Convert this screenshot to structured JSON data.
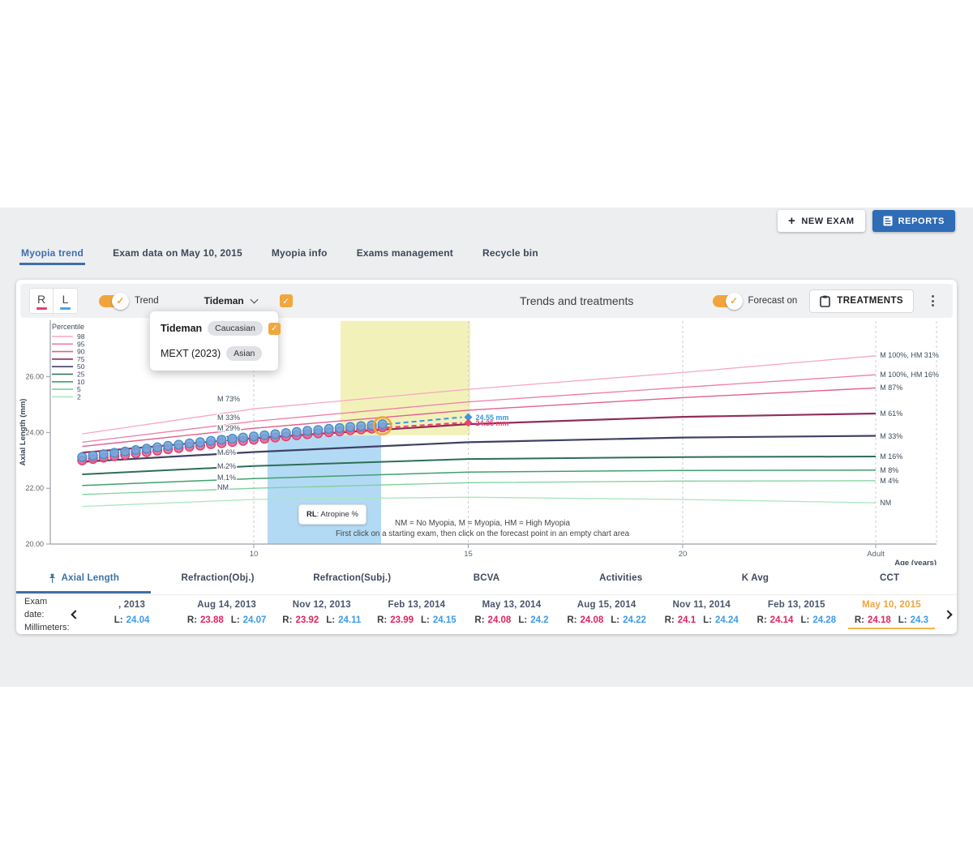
{
  "icons": {
    "check": "✓"
  },
  "header": {
    "actions": {
      "new_exam": "NEW EXAM",
      "reports": "REPORTS"
    },
    "tabs": [
      {
        "label": "Myopia trend",
        "active": true
      },
      {
        "label": "Exam data on May 10, 2015"
      },
      {
        "label": "Myopia info"
      },
      {
        "label": "Exams management"
      },
      {
        "label": "Recycle bin"
      }
    ]
  },
  "toolbar": {
    "eye_r": "R",
    "eye_l": "L",
    "trend_label": "Trend",
    "model_selector_label": "Tideman",
    "title": "Trends and treatments",
    "forecast_label": "Forecast on",
    "treatments_label": "TREATMENTS"
  },
  "model_dropdown": [
    {
      "name": "Tideman",
      "tag": "Caucasian",
      "checked": true,
      "bold": true
    },
    {
      "name": "MEXT (2023)",
      "tag": "Asian",
      "checked": false,
      "bold": false
    }
  ],
  "chart_data": {
    "type": "line",
    "ylabel": "Axial Length (mm)",
    "xlabel": "Age (years)",
    "xlim": [
      5.3,
      25.9
    ],
    "ylim": [
      20,
      28
    ],
    "x_ticks": [
      {
        "age": 10,
        "label": "10"
      },
      {
        "age": 15,
        "label": "15"
      },
      {
        "age": 20,
        "label": "20"
      },
      {
        "age": 24.5,
        "label": "Adult"
      }
    ],
    "y_ticks": [
      {
        "mm": 26,
        "label": "26.00"
      },
      {
        "mm": 24,
        "label": "24.00"
      },
      {
        "mm": 22,
        "label": "22.00"
      },
      {
        "mm": 20,
        "label": "20.00"
      }
    ],
    "legend": {
      "title": "Percentile",
      "entries": [
        {
          "label": "98",
          "color": "#f7a8c1"
        },
        {
          "label": "95",
          "color": "#ef7ca6"
        },
        {
          "label": "90",
          "color": "#e25f8d"
        },
        {
          "label": "75",
          "color": "#8f2d5c"
        },
        {
          "label": "50",
          "color": "#3f4164"
        },
        {
          "label": "25",
          "color": "#2d6e55"
        },
        {
          "label": "10",
          "color": "#3fa06c"
        },
        {
          "label": "5",
          "color": "#7bd29a"
        },
        {
          "label": "2",
          "color": "#abe7bd"
        }
      ]
    },
    "percentile_curves": [
      {
        "p": 98,
        "color": "#f7a8c1",
        "width": 1.3,
        "points": [
          [
            6,
            23.95
          ],
          [
            10,
            24.85
          ],
          [
            15,
            25.55
          ],
          [
            20,
            26.15
          ],
          [
            24.5,
            26.75
          ]
        ]
      },
      {
        "p": 95,
        "color": "#ef7ca6",
        "width": 1.3,
        "points": [
          [
            6,
            23.65
          ],
          [
            10,
            24.4
          ],
          [
            15,
            25.1
          ],
          [
            20,
            25.62
          ],
          [
            24.5,
            26.07
          ]
        ]
      },
      {
        "p": 90,
        "color": "#e25f8d",
        "width": 1.4,
        "points": [
          [
            6,
            23.5
          ],
          [
            10,
            24.15
          ],
          [
            15,
            24.8
          ],
          [
            20,
            25.25
          ],
          [
            24.5,
            25.6
          ]
        ]
      },
      {
        "p": 75,
        "color": "#8f2d5c",
        "width": 2.2,
        "points": [
          [
            6,
            23.28
          ],
          [
            10,
            23.8
          ],
          [
            15,
            24.3
          ],
          [
            20,
            24.56
          ],
          [
            24.5,
            24.68
          ]
        ]
      },
      {
        "p": 50,
        "color": "#3f4164",
        "width": 2.2,
        "points": [
          [
            6,
            22.95
          ],
          [
            10,
            23.3
          ],
          [
            15,
            23.65
          ],
          [
            20,
            23.82
          ],
          [
            24.5,
            23.88
          ]
        ]
      },
      {
        "p": 25,
        "color": "#2d6e55",
        "width": 2.0,
        "points": [
          [
            6,
            22.5
          ],
          [
            10,
            22.8
          ],
          [
            15,
            23.05
          ],
          [
            20,
            23.12
          ],
          [
            24.5,
            23.14
          ]
        ]
      },
      {
        "p": 10,
        "color": "#3fa06c",
        "width": 1.5,
        "points": [
          [
            6,
            22.1
          ],
          [
            10,
            22.35
          ],
          [
            15,
            22.58
          ],
          [
            20,
            22.64
          ],
          [
            24.5,
            22.65
          ]
        ]
      },
      {
        "p": 5,
        "color": "#7bd29a",
        "width": 1.3,
        "points": [
          [
            6,
            21.78
          ],
          [
            10,
            22.0
          ],
          [
            15,
            22.2
          ],
          [
            20,
            22.26
          ],
          [
            24.5,
            22.27
          ]
        ]
      },
      {
        "p": 2,
        "color": "#abe7bd",
        "width": 1.3,
        "points": [
          [
            6,
            21.35
          ],
          [
            10,
            21.6
          ],
          [
            15,
            21.68
          ],
          [
            20,
            21.6
          ],
          [
            24.5,
            21.48
          ]
        ]
      }
    ],
    "curve_labels_left_age": 9.15,
    "curve_labels_left": [
      {
        "text": "M 73%",
        "mm": 25.2
      },
      {
        "text": "M 33%",
        "mm": 24.53
      },
      {
        "text": "M 29%",
        "mm": 24.16
      },
      {
        "text": "M 12%",
        "mm": 23.78
      },
      {
        "text": "M 6%",
        "mm": 23.28
      },
      {
        "text": "M 2%",
        "mm": 22.79
      },
      {
        "text": "M 1%",
        "mm": 22.38
      },
      {
        "text": "NM",
        "mm": 22.03
      }
    ],
    "curve_labels_right_age": 24.6,
    "curve_labels_right": [
      {
        "text": "M 100%, HM 31%",
        "mm": 26.77
      },
      {
        "text": "M 100%, HM 16%",
        "mm": 26.08
      },
      {
        "text": "M 87%",
        "mm": 25.61
      },
      {
        "text": "M 61%",
        "mm": 24.68
      },
      {
        "text": "M 33%",
        "mm": 23.87
      },
      {
        "text": "M 16%",
        "mm": 23.14
      },
      {
        "text": "M 8%",
        "mm": 22.65
      },
      {
        "text": "M 4%",
        "mm": 22.27
      },
      {
        "text": "NM",
        "mm": 21.48
      }
    ],
    "series": [
      {
        "name": "R",
        "fill": "#ee6292",
        "stroke": "#db3f72",
        "points": [
          [
            6,
            23.0
          ],
          [
            6.25,
            23.05
          ],
          [
            6.5,
            23.1
          ],
          [
            6.75,
            23.15
          ],
          [
            7,
            23.2
          ],
          [
            7.25,
            23.25
          ],
          [
            7.5,
            23.3
          ],
          [
            7.75,
            23.35
          ],
          [
            8,
            23.4
          ],
          [
            8.25,
            23.44
          ],
          [
            8.5,
            23.49
          ],
          [
            8.75,
            23.53
          ],
          [
            9,
            23.58
          ],
          [
            9.25,
            23.62
          ],
          [
            9.5,
            23.66
          ],
          [
            9.75,
            23.7
          ],
          [
            10,
            23.74
          ],
          [
            10.25,
            23.78
          ],
          [
            10.5,
            23.82
          ],
          [
            10.75,
            23.86
          ],
          [
            11,
            23.9
          ],
          [
            11.25,
            23.94
          ],
          [
            11.5,
            23.97
          ],
          [
            11.75,
            24.01
          ],
          [
            12,
            24.04
          ],
          [
            12.25,
            24.08
          ],
          [
            12.5,
            24.11
          ],
          [
            12.75,
            24.14
          ],
          [
            13,
            24.18
          ]
        ]
      },
      {
        "name": "L",
        "fill": "#70a9dd",
        "stroke": "#4b8cc8",
        "points": [
          [
            6,
            23.12
          ],
          [
            6.25,
            23.17
          ],
          [
            6.5,
            23.22
          ],
          [
            6.75,
            23.27
          ],
          [
            7,
            23.32
          ],
          [
            7.25,
            23.37
          ],
          [
            7.5,
            23.42
          ],
          [
            7.75,
            23.47
          ],
          [
            8,
            23.52
          ],
          [
            8.25,
            23.56
          ],
          [
            8.5,
            23.61
          ],
          [
            8.75,
            23.65
          ],
          [
            9,
            23.7
          ],
          [
            9.25,
            23.74
          ],
          [
            9.5,
            23.78
          ],
          [
            9.75,
            23.82
          ],
          [
            10,
            23.86
          ],
          [
            10.25,
            23.9
          ],
          [
            10.5,
            23.94
          ],
          [
            10.75,
            23.98
          ],
          [
            11,
            24.02
          ],
          [
            11.25,
            24.06
          ],
          [
            11.5,
            24.09
          ],
          [
            11.75,
            24.13
          ],
          [
            12,
            24.16
          ],
          [
            12.25,
            24.2
          ],
          [
            12.5,
            24.23
          ],
          [
            12.75,
            24.26
          ],
          [
            13,
            24.3
          ]
        ]
      }
    ],
    "selected_point": {
      "age": 13,
      "mm": 24.24,
      "ring_color": "#f2a43c"
    },
    "forecast": [
      {
        "name": "L",
        "color": "#3898e0",
        "from": [
          13,
          24.3
        ],
        "to": [
          15,
          24.55
        ],
        "label": "24.55 mm"
      },
      {
        "name": "R",
        "color": "#e8436f",
        "from": [
          13,
          24.18
        ],
        "to": [
          15,
          24.35
        ],
        "label": "24.35 mm"
      }
    ],
    "regions": [
      {
        "name": "forecast-window",
        "color": "#f1eeae",
        "opacity": 0.85,
        "age": [
          12.02,
          15.05
        ],
        "mm": [
          23.9,
          28
        ]
      },
      {
        "name": "treatment-window",
        "color": "#a6d4f2",
        "opacity": 0.85,
        "age": [
          10.32,
          12.97
        ],
        "mm": [
          20,
          23.9
        ]
      }
    ],
    "tooltip": {
      "bold": "RL",
      "text": ": Atropine %"
    },
    "notes": [
      "NM = No Myopia, M = Myopia, HM = High Myopia",
      "First click on a starting exam, then click on the forecast point in an empty chart area"
    ]
  },
  "metric_tabs": [
    {
      "label": "Axial Length",
      "active": true
    },
    {
      "label": "Refraction(Obj.)"
    },
    {
      "label": "Refraction(Subj.)"
    },
    {
      "label": "BCVA"
    },
    {
      "label": "Activities"
    },
    {
      "label": "K Avg"
    },
    {
      "label": "CCT"
    }
  ],
  "exam_table": {
    "row_labels": {
      "date": "Exam date:",
      "value": "Millimeters:"
    },
    "r_prefix": "R:",
    "l_prefix": "L:",
    "columns": [
      {
        "date": ", 2013",
        "l": "24.04"
      },
      {
        "date": "Aug 14, 2013",
        "r": "23.88",
        "l": "24.07"
      },
      {
        "date": "Nov 12, 2013",
        "r": "23.92",
        "l": "24.11"
      },
      {
        "date": "Feb 13, 2014",
        "r": "23.99",
        "l": "24.15"
      },
      {
        "date": "May 13, 2014",
        "r": "24.08",
        "l": "24.2"
      },
      {
        "date": "Aug 15, 2014",
        "r": "24.08",
        "l": "24.22"
      },
      {
        "date": "Nov 11, 2014",
        "r": "24.1",
        "l": "24.24"
      },
      {
        "date": "Feb 13, 2015",
        "r": "24.14",
        "l": "24.28"
      },
      {
        "date": "May 10, 2015",
        "r": "24.18",
        "l": "24.3",
        "selected": true
      }
    ]
  }
}
